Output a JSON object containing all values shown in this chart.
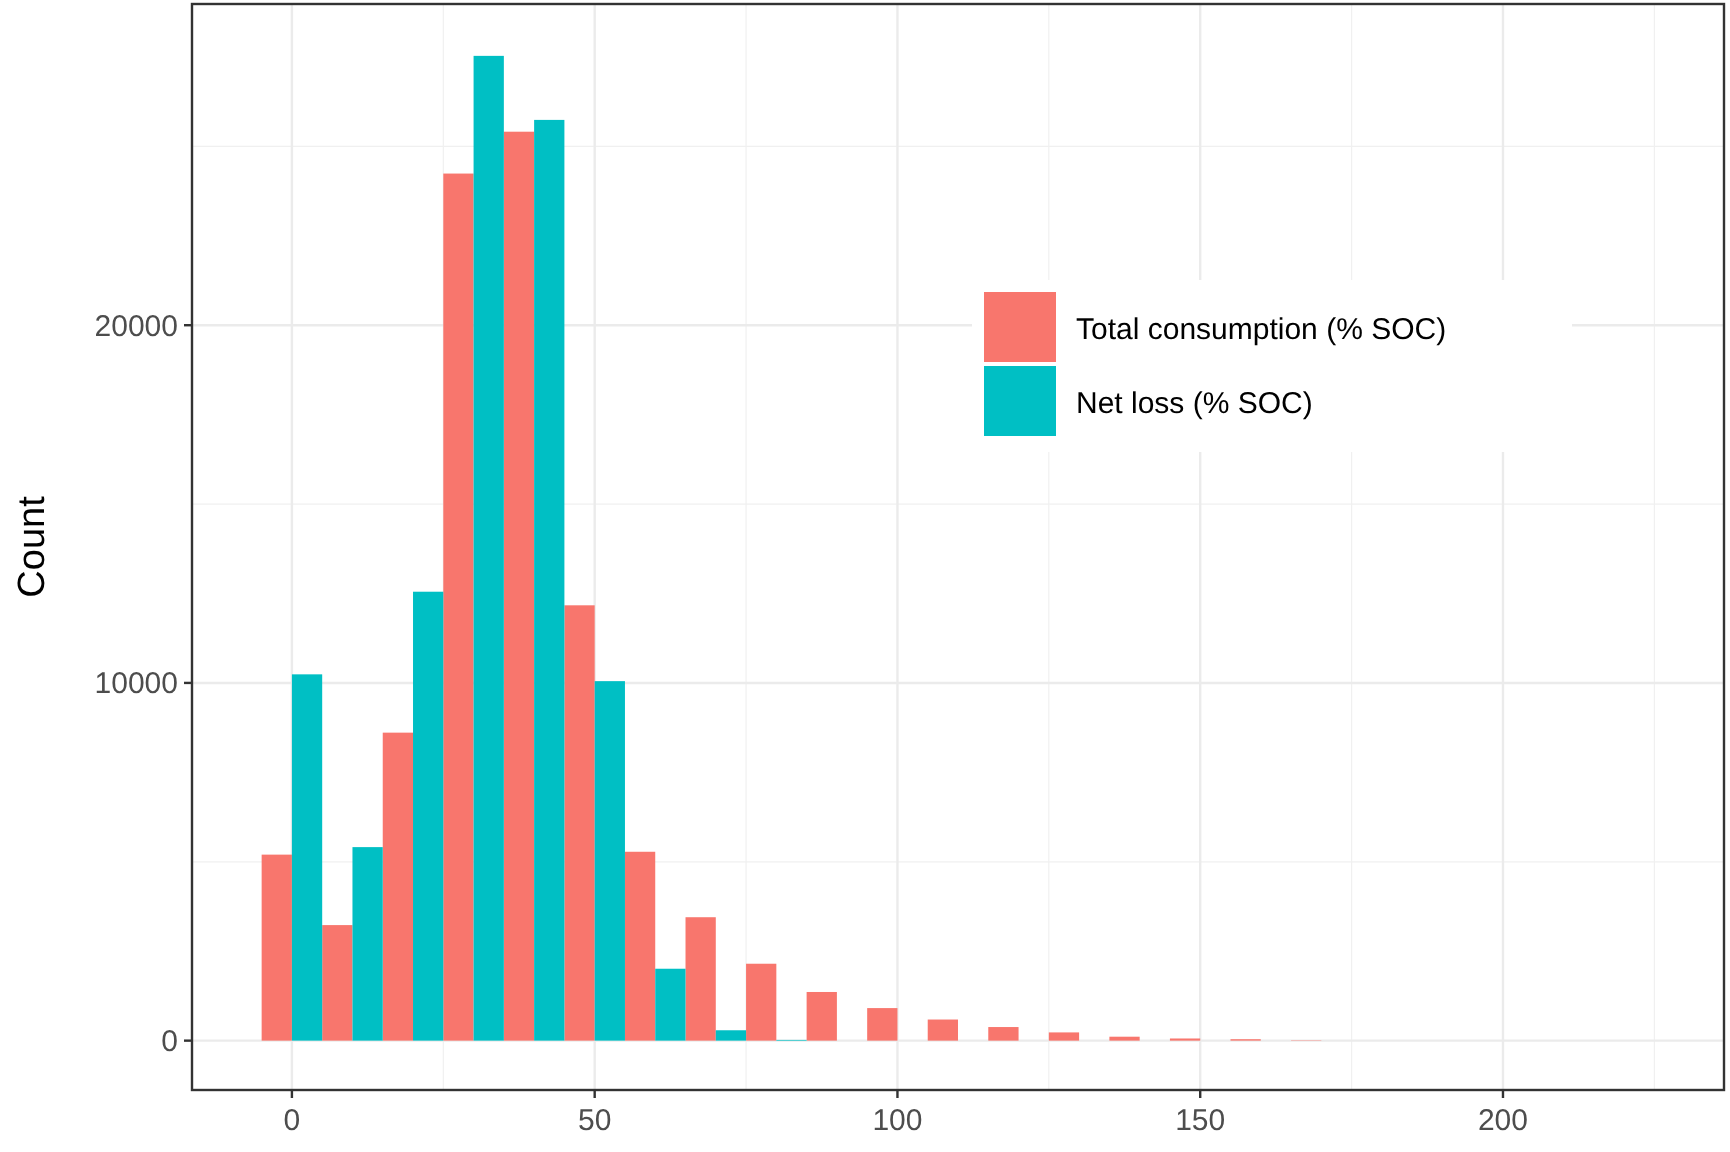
{
  "chart_data": {
    "type": "histogram",
    "ylabel": "Count",
    "bins": [
      -5,
      5,
      15,
      25,
      35,
      45,
      55,
      65,
      75,
      85,
      95,
      105,
      115,
      125,
      135,
      145,
      155,
      165,
      175
    ],
    "series": [
      {
        "name": "Total consumption (% SOC)",
        "color": "#f8766d",
        "values": [
          5200,
          3230,
          8610,
          24240,
          25410,
          12170,
          5280,
          3450,
          2150,
          1360,
          910,
          590,
          380,
          230,
          110,
          60,
          40,
          10
        ]
      },
      {
        "name": "Net loss (% SOC)",
        "color": "#00bfc4",
        "values": [
          10240,
          5410,
          12550,
          27530,
          25740,
          10050,
          2010,
          290,
          20,
          0,
          0,
          0,
          0,
          0,
          0,
          0,
          0,
          0
        ]
      }
    ],
    "xlim": [
      -16.5,
      236.5
    ],
    "xticks": [
      0,
      50,
      100,
      150,
      200
    ],
    "ylim": [
      -1380,
      28980
    ],
    "yticks": [
      0,
      10000,
      20000
    ],
    "grid": true,
    "legend": "top right"
  }
}
